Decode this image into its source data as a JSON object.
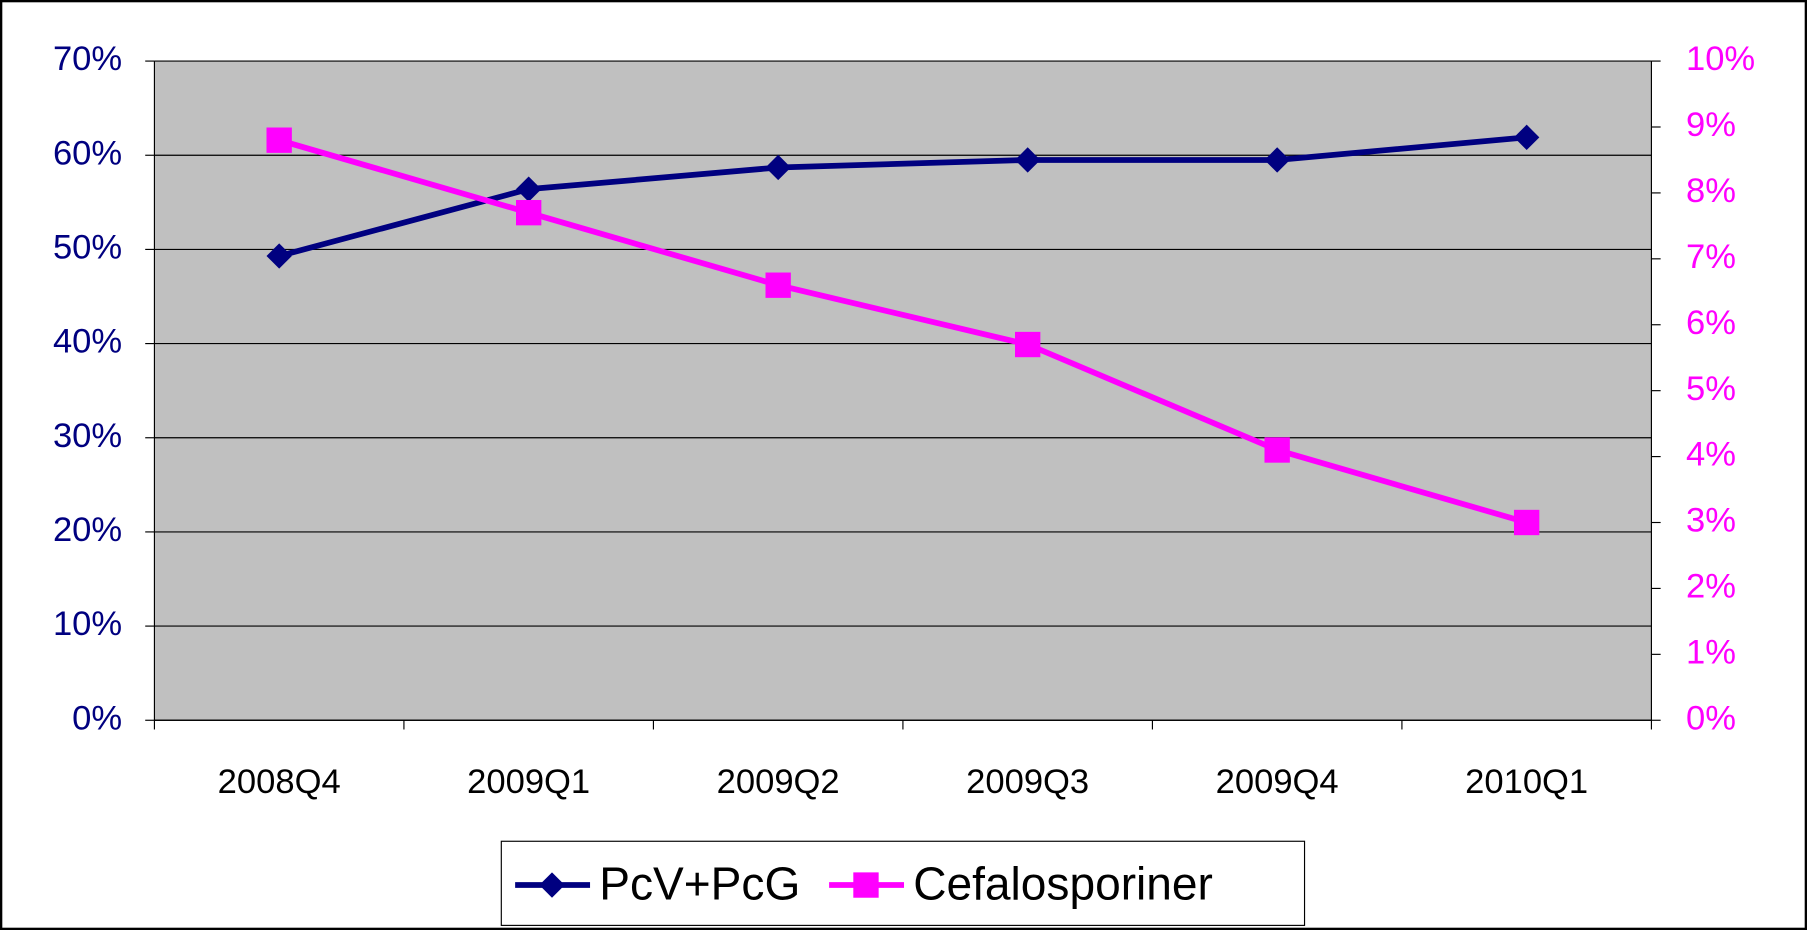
{
  "chart_data": {
    "type": "line",
    "categories": [
      "2008Q4",
      "2009Q1",
      "2009Q2",
      "2009Q3",
      "2009Q4",
      "2010Q1"
    ],
    "series": [
      {
        "name": "PcV+PcG",
        "color": "#000080",
        "marker": "diamond",
        "values": [
          49.3,
          56.4,
          58.7,
          59.5,
          59.5,
          61.9
        ]
      },
      {
        "name": "Cefalosporiner",
        "color": "#ff00ff",
        "marker": "square",
        "axis": "y2",
        "values": [
          8.8,
          7.7,
          6.6,
          5.7,
          4.1,
          3.0
        ]
      }
    ],
    "ylim": [
      0,
      70
    ],
    "yticks": [
      {
        "value": 0,
        "label": "0%"
      },
      {
        "value": 10,
        "label": "10%"
      },
      {
        "value": 20,
        "label": "20%"
      },
      {
        "value": 30,
        "label": "30%"
      },
      {
        "value": 40,
        "label": "40%"
      },
      {
        "value": 50,
        "label": "50%"
      },
      {
        "value": 60,
        "label": "60%"
      },
      {
        "value": 70,
        "label": "70%"
      }
    ],
    "y2lim": [
      0,
      10
    ],
    "y2ticks": [
      {
        "value": 0,
        "label": "0%"
      },
      {
        "value": 1,
        "label": "1%"
      },
      {
        "value": 2,
        "label": "2%"
      },
      {
        "value": 3,
        "label": "3%"
      },
      {
        "value": 4,
        "label": "4%"
      },
      {
        "value": 5,
        "label": "5%"
      },
      {
        "value": 6,
        "label": "6%"
      },
      {
        "value": 7,
        "label": "7%"
      },
      {
        "value": 8,
        "label": "8%"
      },
      {
        "value": 9,
        "label": "9%"
      },
      {
        "value": 10,
        "label": "10%"
      }
    ],
    "grid": true,
    "plot_background": "#c0c0c0",
    "legend": "bottom"
  }
}
